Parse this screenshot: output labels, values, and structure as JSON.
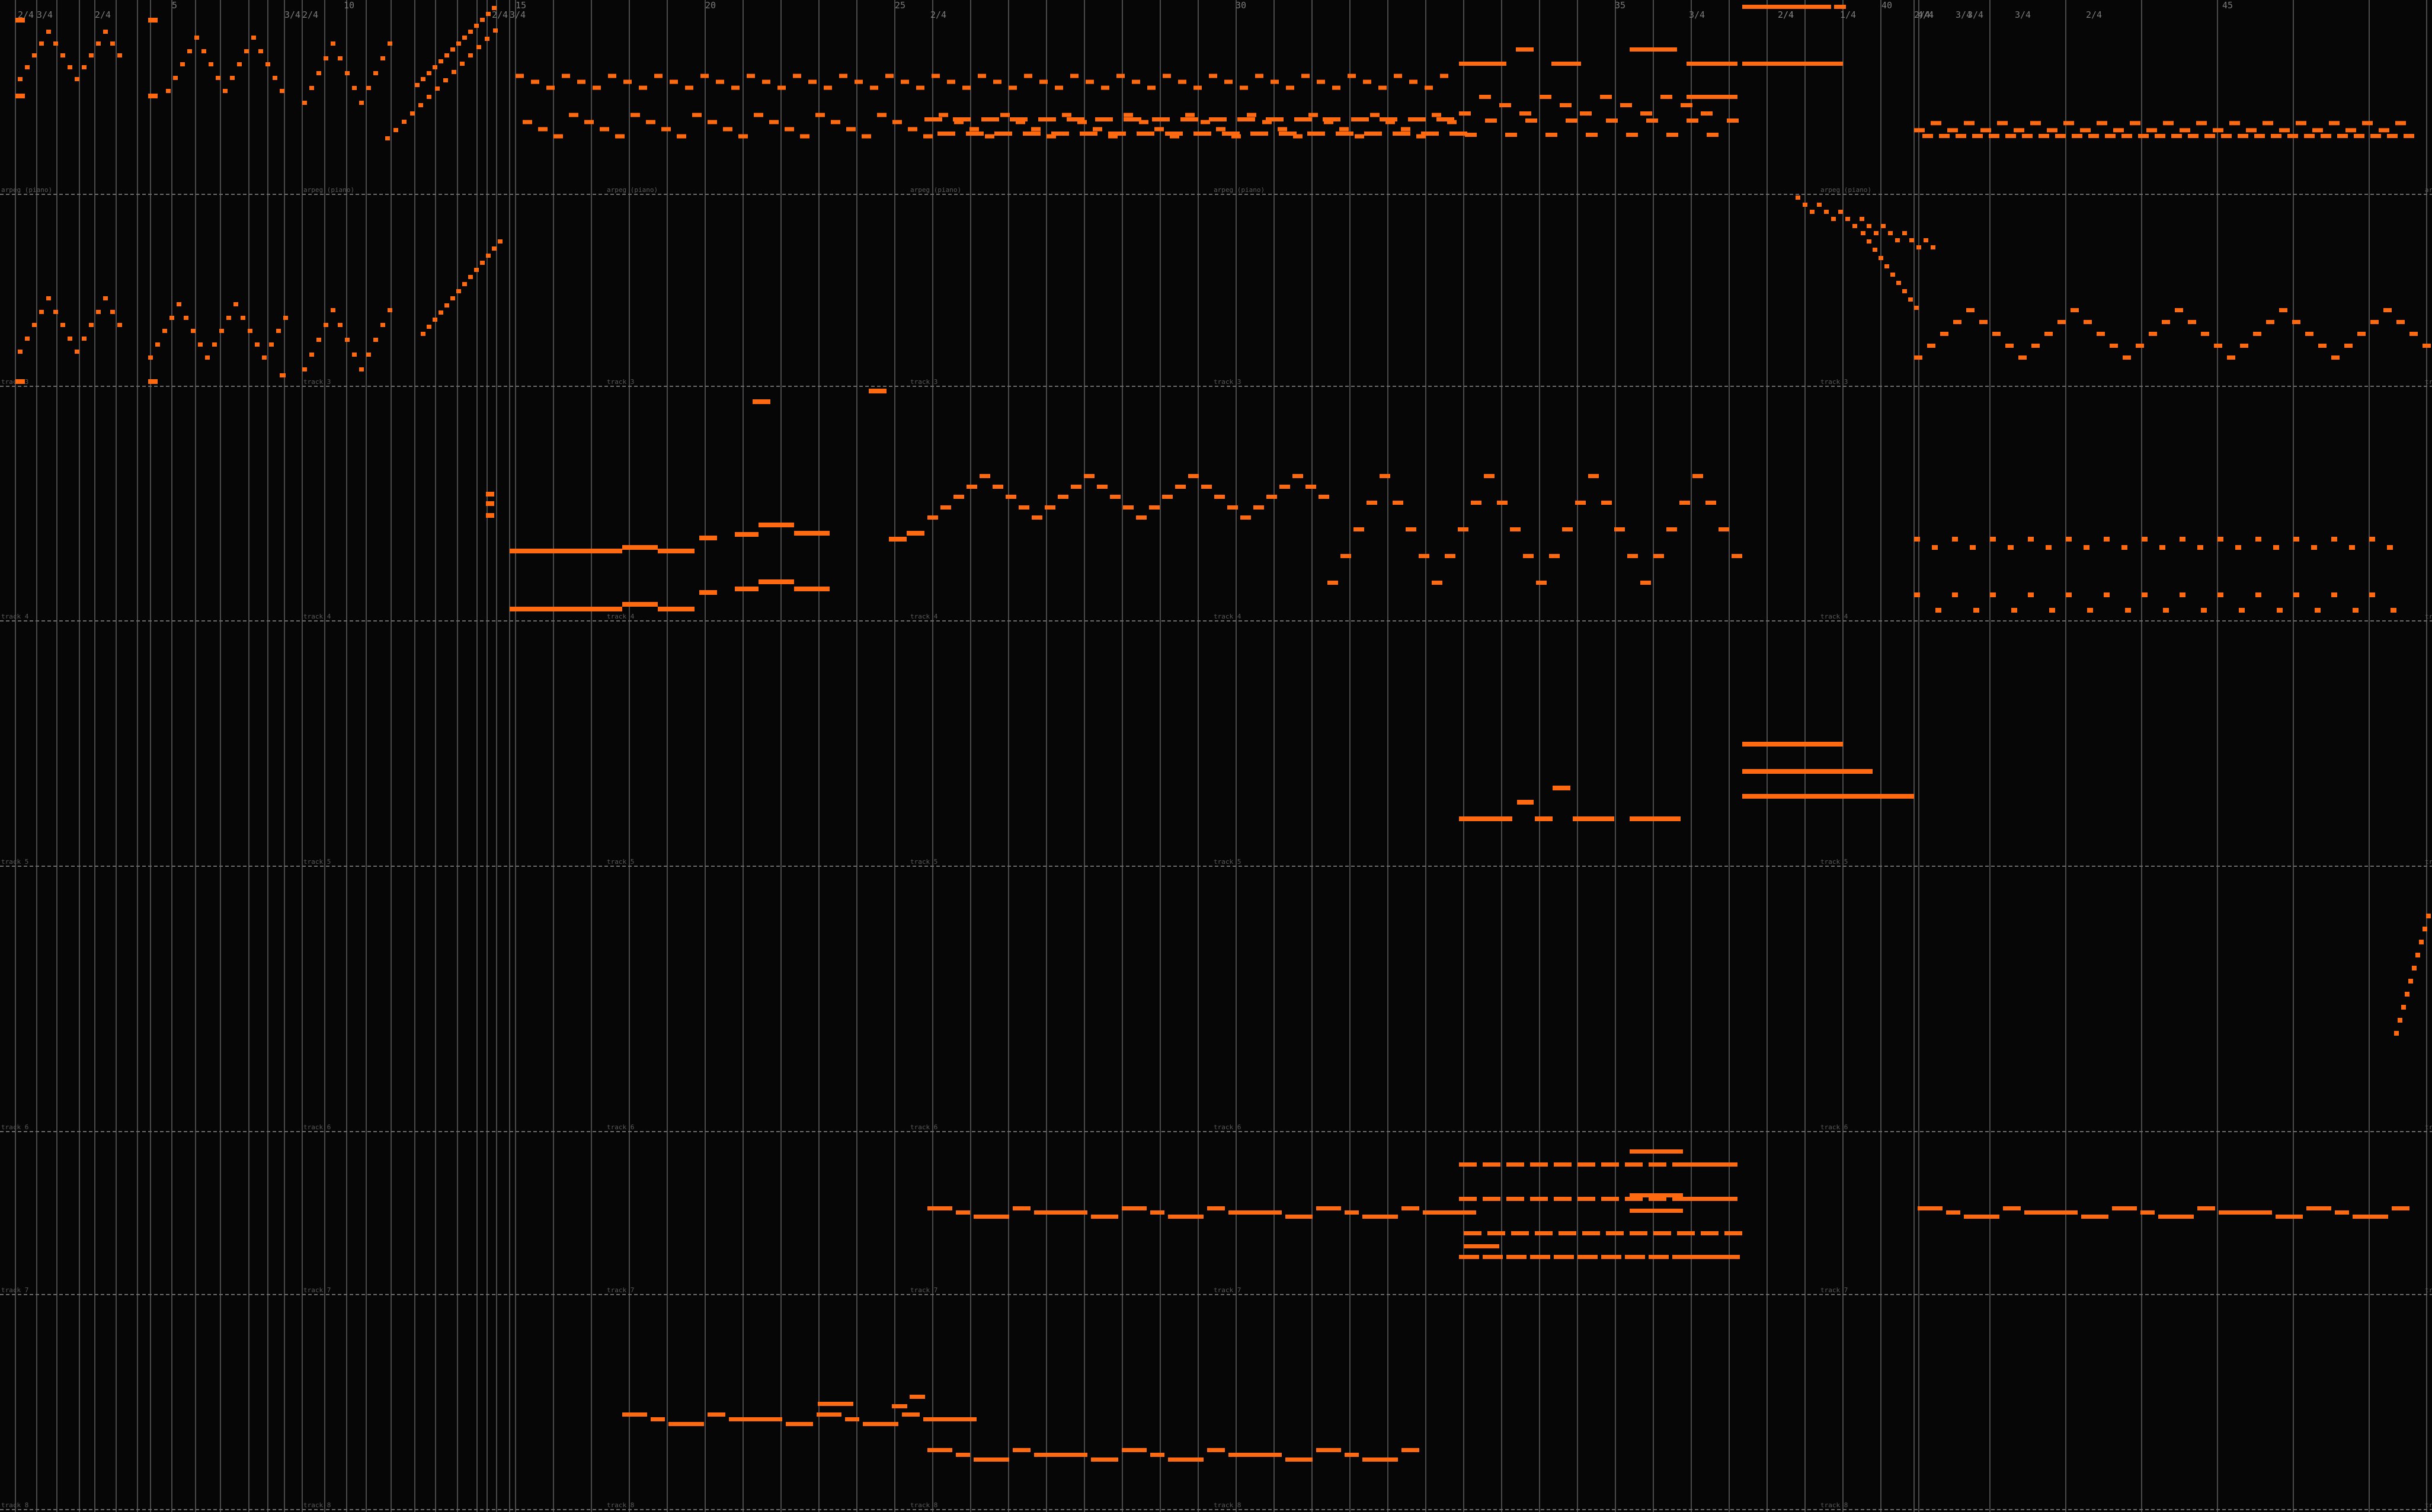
{
  "app": {
    "view": "piano-roll"
  },
  "colors": {
    "background": "#060606",
    "note": "#ff6a10",
    "barline": "#4a4a4a",
    "label": "#5a5a5a"
  },
  "ruler": {
    "bar_numbers": [
      "5",
      "10",
      "15",
      "20",
      "25",
      "30",
      "35",
      "40",
      "45"
    ],
    "time_signatures": [
      "2/4",
      "3/4",
      "2/4",
      "3/4",
      "2/4",
      "2/4",
      "3/4",
      "2/4",
      "1/4",
      "2/4",
      "3/4",
      "2/4",
      "3/4",
      "4/4",
      "3/4",
      "2/4",
      "3/4",
      "2/4",
      "4/4"
    ]
  },
  "track_labels": [
    "arpeg (piano)",
    "track 3",
    "track 4",
    "track 5",
    "track 6",
    "track 7",
    "track 8",
    "track 9"
  ],
  "lanes": [
    {
      "label_index": 0
    },
    {
      "label_index": 1
    },
    {
      "label_index": 2
    },
    {
      "label_index": 3
    },
    {
      "label_index": 4
    },
    {
      "label_index": 5
    },
    {
      "label_index": 6
    },
    {
      "label_index": 7
    }
  ]
}
